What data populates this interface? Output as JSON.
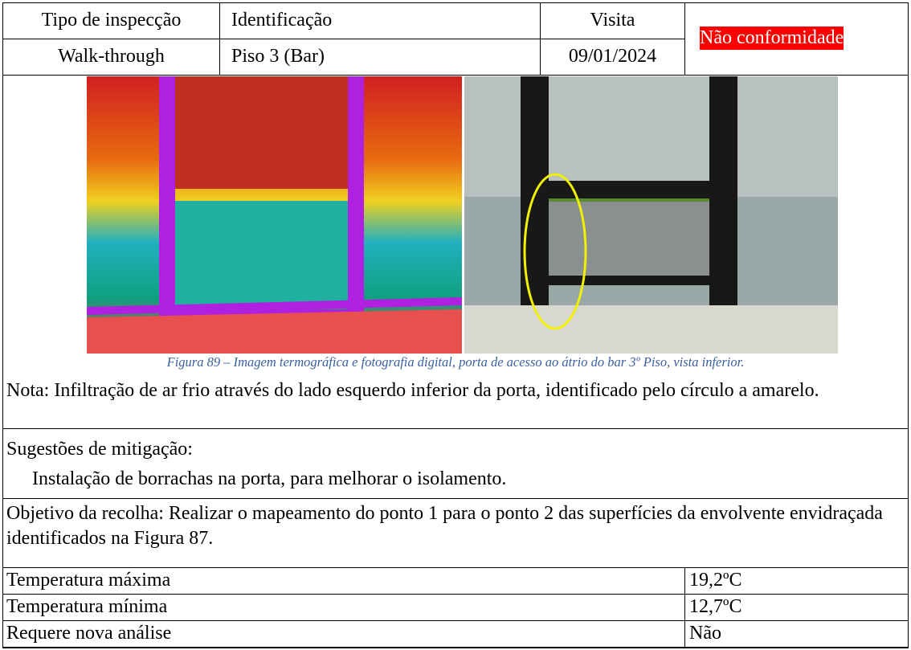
{
  "header": {
    "type_label": "Tipo de inspecção",
    "type_value": "Walk-through",
    "id_label": "Identificação",
    "id_value": "Piso 3 (Bar)",
    "visit_label": "Visita",
    "visit_value": "09/01/2024",
    "status": "Não conformidade"
  },
  "figure": {
    "caption": "Figura 89 – Imagem termográfica e fotografia digital, porta de acesso ao átrio do bar 3º Piso, vista inferior."
  },
  "note": "Nota: Infiltração de ar frio através do lado esquerdo inferior da porta, identificado pelo círculo a amarelo.",
  "mitigation": {
    "title": "Sugestões de mitigação:",
    "items": [
      "Instalação de borrachas na porta, para melhorar o isolamento."
    ]
  },
  "objective": "Objetivo da recolha: Realizar o mapeamento do ponto 1 para o ponto 2 das superfícies da envolvente envidraçada identificados na Figura 87.",
  "table": {
    "rows": [
      [
        "Temperatura máxima",
        "19,2ºC"
      ],
      [
        "Temperatura mínima",
        "12,7ºC"
      ],
      [
        "Requere nova análise",
        "Não"
      ]
    ]
  }
}
